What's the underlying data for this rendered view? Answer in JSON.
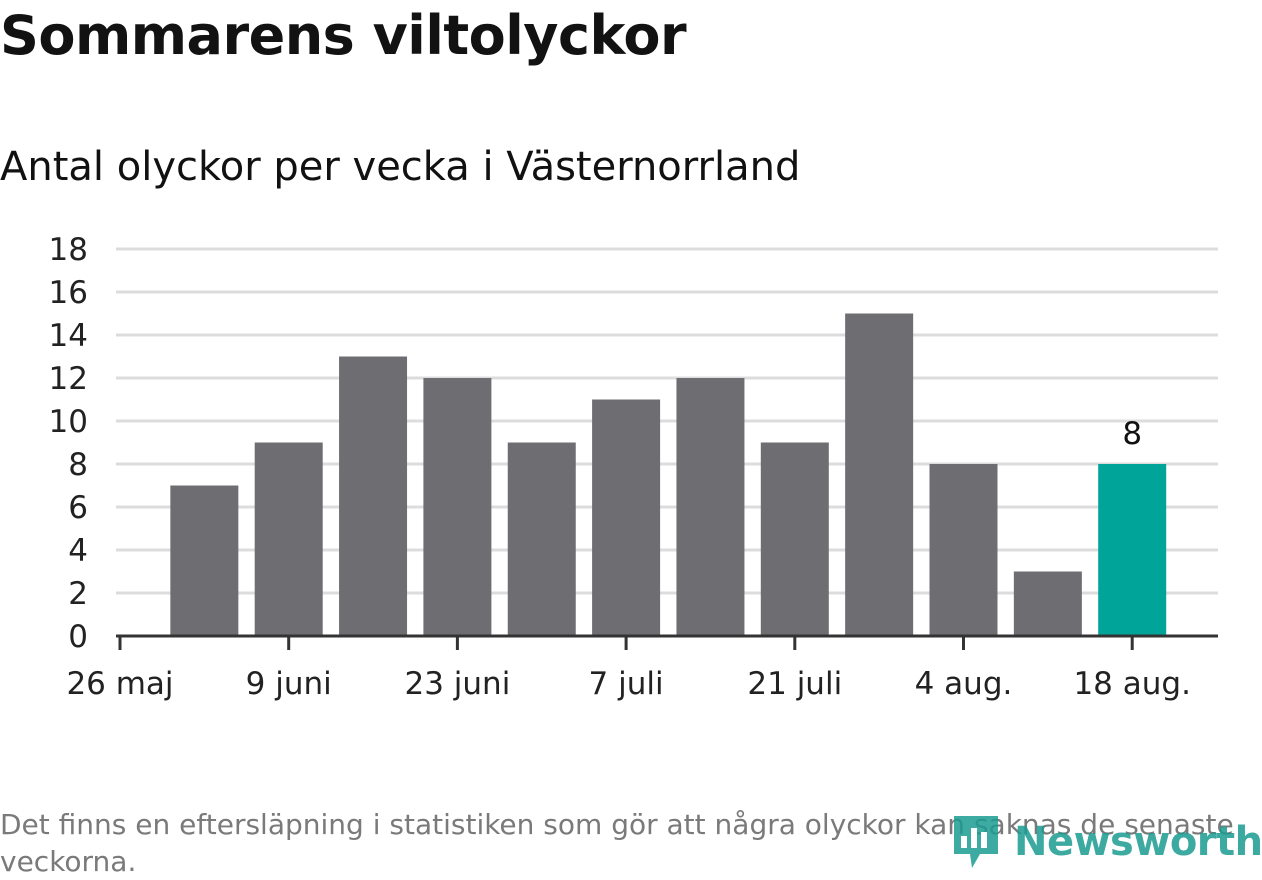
{
  "title": "Sommarens viltolyckor",
  "subtitle": "Antal olyckor per vecka i Västernorrland",
  "note": "Det finns en eftersläpning i statistiken som gör att några olyckor kan saknas de senaste veckorna.",
  "brand": {
    "name": "Newsworthy",
    "color": "#1c9c92",
    "icon": "newsworthy-logo-icon"
  },
  "colors": {
    "bar": "#6e6d72",
    "highlight": "#00a499",
    "grid": "#dcdcdc",
    "axis": "#333333"
  },
  "chart_data": {
    "type": "bar",
    "categories": [
      "2 juni",
      "9 juni",
      "16 juni",
      "23 juni",
      "30 juni",
      "7 juli",
      "14 juli",
      "21 juli",
      "28 juli",
      "4 aug.",
      "11 aug.",
      "18 aug."
    ],
    "values": [
      7,
      9,
      13,
      12,
      9,
      11,
      12,
      9,
      15,
      8,
      3,
      8
    ],
    "highlight_index": 11,
    "data_labels": [
      {
        "category": "18 aug.",
        "value": 8,
        "text": "8"
      }
    ],
    "x_ticks": [
      "26 maj",
      "9 juni",
      "23 juni",
      "7 juli",
      "21 juli",
      "4 aug.",
      "18 aug."
    ],
    "y_ticks": [
      0,
      2,
      4,
      6,
      8,
      10,
      12,
      14,
      16,
      18
    ],
    "ylim": [
      0,
      18
    ],
    "grid": true,
    "legend": "none"
  }
}
